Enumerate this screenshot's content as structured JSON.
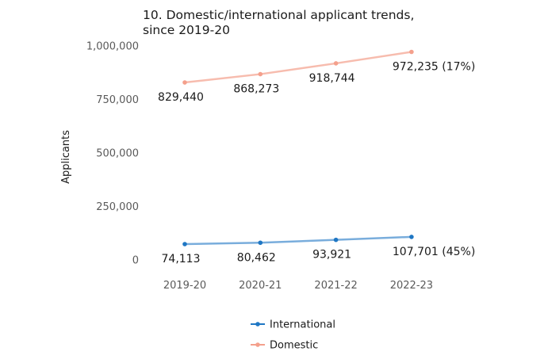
{
  "chart_data": {
    "type": "line",
    "title": [
      "10. Domestic/international applicant trends,",
      "since 2019-20"
    ],
    "xlabel": "",
    "ylabel": "Applicants",
    "categories": [
      "2019-20",
      "2020-21",
      "2021-22",
      "2022-23"
    ],
    "ylim": [
      0,
      1000000
    ],
    "y_ticks": [
      0,
      250000,
      500000,
      750000,
      1000000
    ],
    "y_tick_labels": [
      "0",
      "250,000",
      "500,000",
      "750,000",
      "1,000,000"
    ],
    "grid": false,
    "legend_position": "bottom",
    "series": [
      {
        "name": "International",
        "color": "#1f77c4",
        "values": [
          74113,
          80462,
          93921,
          107701
        ],
        "labels": [
          "74,113",
          "80,462",
          "93,921",
          "107,701 (45%)"
        ]
      },
      {
        "name": "Domestic",
        "color": "#f4a08c",
        "values": [
          829440,
          868273,
          918744,
          972235
        ],
        "labels": [
          "829,440",
          "868,273",
          "918,744",
          "972,235 (17%)"
        ]
      }
    ]
  }
}
